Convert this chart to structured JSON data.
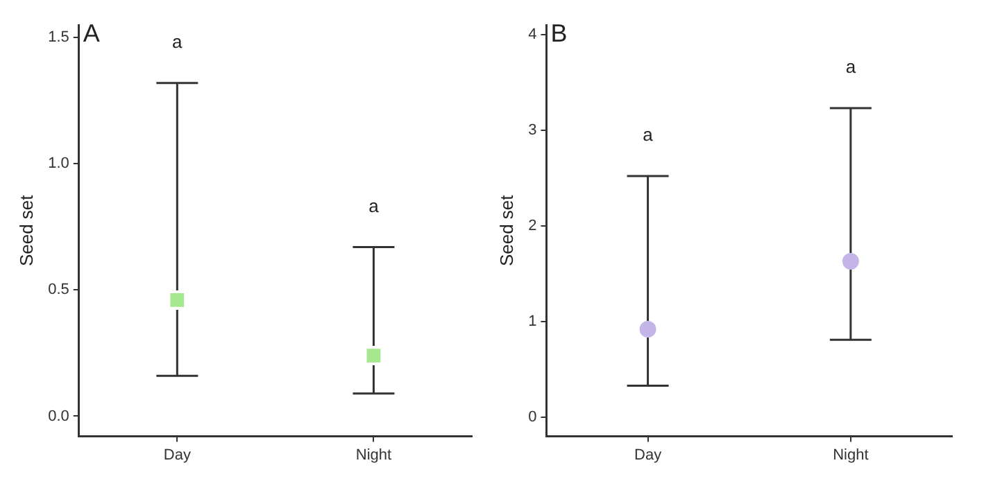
{
  "chart_data": [
    {
      "type": "scatter",
      "title": "A",
      "ylabel": "Seed set",
      "categories": [
        "Day",
        "Night"
      ],
      "marker": "square",
      "grid": false,
      "series": [
        {
          "color": "#a6e88f",
          "values": [
            0.46,
            0.24
          ],
          "errors": [
            [
              0.16,
              1.32
            ],
            [
              0.09,
              0.67
            ]
          ]
        }
      ],
      "ylim": [
        -0.08,
        1.55
      ],
      "yticks": [
        {
          "value": 0,
          "label": "0.0"
        },
        {
          "value": 0.5,
          "label": "0.5"
        },
        {
          "value": 1,
          "label": "1.0"
        },
        {
          "value": 1.5,
          "label": "1.5"
        }
      ],
      "annotations": [
        "a",
        "a"
      ]
    },
    {
      "type": "scatter",
      "title": "B",
      "ylabel": "Seed set",
      "categories": [
        "Day",
        "Night"
      ],
      "marker": "circle",
      "grid": false,
      "series": [
        {
          "color": "#c3b5e8",
          "values": [
            0.92,
            1.63
          ],
          "errors": [
            [
              0.33,
              2.52
            ],
            [
              0.81,
              3.23
            ]
          ]
        }
      ],
      "ylim": [
        -0.2,
        4.1
      ],
      "yticks": [
        0,
        1,
        2,
        3,
        4
      ],
      "annotations": [
        "a",
        "a"
      ]
    }
  ]
}
